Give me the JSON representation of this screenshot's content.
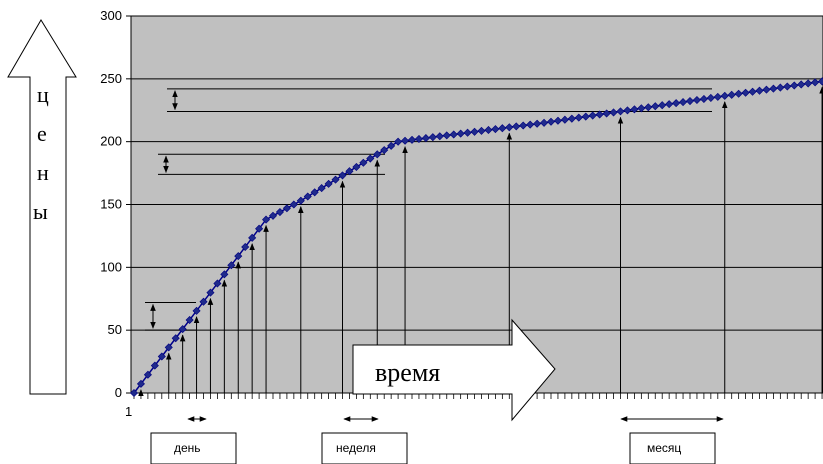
{
  "chart_data": {
    "type": "line",
    "title": "",
    "xlabel": "время",
    "ylabel_letters": [
      "ц",
      "е",
      "н",
      "ы"
    ],
    "ylim": [
      0,
      300
    ],
    "yticks": [
      "0",
      "50",
      "100",
      "150",
      "200",
      "250",
      "300"
    ],
    "x_first_tick_label": "1",
    "n_points": 100,
    "grid": "horizontal",
    "plot_bg": "#c0c0c0",
    "series_color": "#00008b",
    "marker_color": "#1f2a8c",
    "period_labels": [
      "день",
      "неделя",
      "месяц"
    ],
    "y_breakpoints": [
      {
        "index": 1,
        "value": 0
      },
      {
        "index": 20,
        "value": 138
      },
      {
        "index": 25,
        "value": 153
      },
      {
        "index": 39,
        "value": 200
      },
      {
        "index": 60,
        "value": 215
      },
      {
        "index": 100,
        "value": 248
      }
    ]
  }
}
